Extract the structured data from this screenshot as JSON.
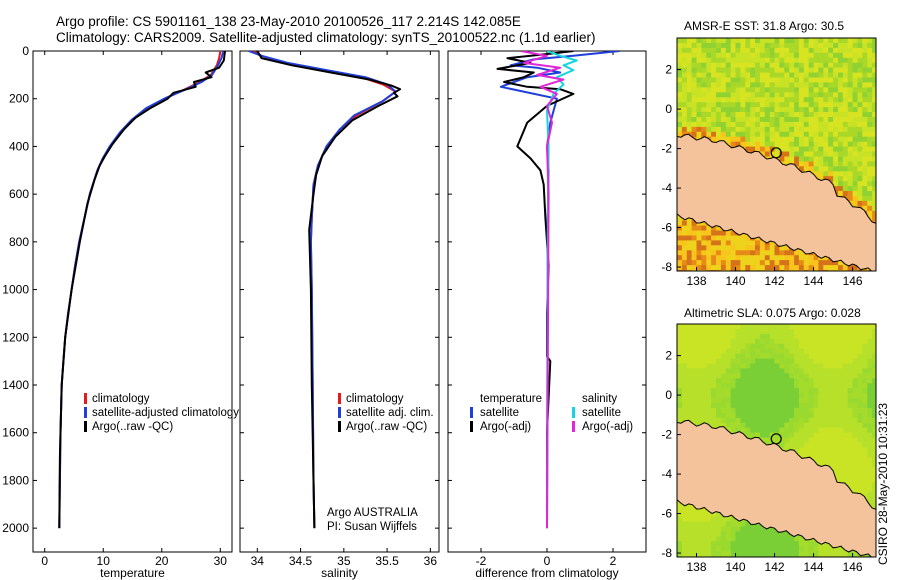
{
  "header": {
    "line1": "Argo profile: CS 5901161_138 23-May-2010 20100526_117 2.214S 142.085E",
    "line2": "Climatology: CARS2009. Satellite-adjusted climatology: synTS_20100522.nc (1.1d earlier)"
  },
  "side_label": "CSIRO 28-May-2010 10:31:23",
  "chart_data": [
    {
      "type": "line",
      "name": "temperature-profile",
      "xlabel": "temperature",
      "xlim": [
        -2,
        32
      ],
      "ylim": [
        0,
        2100
      ],
      "y_reversed": true,
      "xticks": [
        0,
        10,
        20,
        30
      ],
      "yticks": [
        0,
        200,
        400,
        600,
        800,
        1000,
        1200,
        1400,
        1600,
        1800,
        2000
      ],
      "legend": {
        "placement": "lower-right",
        "items": [
          "climatology",
          "satellite-adjusted climatology",
          "Argo(..raw -QC)"
        ]
      },
      "series": [
        {
          "name": "climatology",
          "color": "#e41a1c",
          "x": [
            30.0,
            29.8,
            29.4,
            28.4,
            26.5,
            24.0,
            20.5,
            17.5,
            15.0,
            13.0,
            11.2,
            10.0,
            9.0,
            7.7,
            6.8,
            5.9,
            5.2,
            4.6,
            4.0,
            3.5,
            3.2,
            2.9,
            2.7,
            2.6,
            2.5
          ],
          "y": [
            0,
            30,
            60,
            100,
            130,
            160,
            200,
            240,
            290,
            340,
            400,
            450,
            500,
            600,
            700,
            800,
            900,
            1000,
            1100,
            1200,
            1300,
            1400,
            1600,
            1800,
            2000
          ]
        },
        {
          "name": "satellite-adjusted climatology",
          "color": "#1f3fd9",
          "x": [
            30.5,
            30.2,
            29.6,
            28.6,
            26.8,
            24.2,
            20.4,
            17.3,
            14.8,
            12.9,
            11.1,
            9.9,
            9.0,
            7.7,
            6.8,
            5.9,
            5.2,
            4.6,
            4.0,
            3.5,
            3.2,
            2.9,
            2.7,
            2.6,
            2.5
          ],
          "y": [
            0,
            30,
            60,
            100,
            130,
            160,
            200,
            240,
            290,
            340,
            400,
            450,
            500,
            600,
            700,
            800,
            900,
            1000,
            1100,
            1200,
            1300,
            1400,
            1600,
            1800,
            2000
          ]
        },
        {
          "name": "Argo(..raw -QC)",
          "color": "#000000",
          "x": [
            30.8,
            30.6,
            29.8,
            27.5,
            28.5,
            25.5,
            25.8,
            22.0,
            21.0,
            18.0,
            15.5,
            13.5,
            11.6,
            10.3,
            9.4,
            8.5,
            7.3,
            6.0,
            4.6,
            3.5,
            2.9,
            2.6,
            2.5
          ],
          "y": [
            0,
            40,
            70,
            90,
            110,
            130,
            150,
            175,
            200,
            240,
            280,
            330,
            390,
            440,
            480,
            540,
            640,
            800,
            1000,
            1200,
            1400,
            1700,
            2000
          ]
        }
      ]
    },
    {
      "type": "line",
      "name": "salinity-profile",
      "xlabel": "salinity",
      "xlim": [
        33.8,
        36.1
      ],
      "ylim": [
        0,
        2100
      ],
      "y_reversed": true,
      "xticks": [
        34,
        34.5,
        35,
        35.5,
        36
      ],
      "legend": {
        "placement": "lower-right",
        "items": [
          "climatology",
          "satellite adj. clim.",
          "Argo(..raw -QC)"
        ]
      },
      "annotation": [
        "Argo AUSTRALIA",
        "PI: Susan Wijffels"
      ],
      "series": [
        {
          "name": "climatology",
          "color": "#e41a1c",
          "x": [
            33.95,
            34.05,
            34.3,
            34.75,
            35.2,
            35.45,
            35.6,
            35.45,
            35.15,
            34.95,
            34.8,
            34.7,
            34.65,
            34.63,
            34.62,
            34.63,
            34.64,
            34.65,
            34.66
          ],
          "y": [
            0,
            20,
            50,
            80,
            110,
            140,
            170,
            210,
            270,
            330,
            400,
            480,
            560,
            700,
            800,
            1000,
            1400,
            1800,
            2000
          ]
        },
        {
          "name": "satellite adj. clim.",
          "color": "#1f3fd9",
          "x": [
            33.9,
            34.05,
            34.35,
            34.8,
            35.25,
            35.5,
            35.6,
            35.45,
            35.12,
            34.95,
            34.8,
            34.7,
            34.65,
            34.63,
            34.62,
            34.63,
            34.64,
            34.65,
            34.66
          ],
          "y": [
            0,
            20,
            50,
            80,
            110,
            140,
            170,
            210,
            270,
            330,
            400,
            480,
            560,
            700,
            800,
            1000,
            1400,
            1800,
            2000
          ]
        },
        {
          "name": "Argo(..raw -QC)",
          "color": "#000000",
          "x": [
            34.0,
            34.05,
            34.4,
            34.85,
            35.3,
            35.55,
            35.65,
            35.58,
            35.62,
            35.4,
            35.1,
            34.9,
            34.75,
            34.68,
            34.65,
            34.6,
            34.62,
            34.63,
            34.65,
            34.66
          ],
          "y": [
            0,
            30,
            60,
            90,
            120,
            145,
            160,
            175,
            190,
            230,
            290,
            360,
            440,
            520,
            600,
            750,
            1000,
            1400,
            1800,
            2000
          ]
        }
      ]
    },
    {
      "type": "line",
      "name": "difference-profile",
      "xlabel": "difference from climatology",
      "xlim": [
        -3,
        3
      ],
      "ylim": [
        0,
        2100
      ],
      "y_reversed": true,
      "xticks": [
        -2,
        0,
        2
      ],
      "legend": {
        "placement": "lower-center",
        "columns": [
          {
            "heading": "temperature",
            "items": [
              "satellite",
              "Argo(-adj)"
            ]
          },
          {
            "heading": "salinity",
            "items": [
              "satellite",
              "Argo(-adj)"
            ]
          }
        ]
      },
      "series": [
        {
          "name": "temperature satellite",
          "color": "#1f3fd9",
          "x": [
            2.2,
            1.5,
            0.8,
            -0.4,
            -1.1,
            -0.3,
            0.4,
            -0.6,
            -1.4,
            0.3,
            0.1,
            0.0,
            0.05,
            0.02,
            0.02,
            0.01,
            0.0
          ],
          "y": [
            0,
            10,
            20,
            35,
            60,
            70,
            90,
            110,
            150,
            200,
            300,
            400,
            500,
            700,
            1000,
            1500,
            2000
          ]
        },
        {
          "name": "temperature Argo(-adj)",
          "color": "#000000",
          "x": [
            0.8,
            0.2,
            -1.2,
            -0.5,
            -1.5,
            -0.4,
            -0.7,
            -1.3,
            -0.6,
            0.4,
            0.8,
            0.0,
            -0.6,
            -0.9,
            -0.5,
            -0.2,
            -0.1,
            -0.05,
            0.05,
            0.0,
            0.0,
            0.1,
            0.0,
            0.0
          ],
          "y": [
            0,
            10,
            30,
            50,
            75,
            90,
            110,
            130,
            150,
            160,
            180,
            230,
            300,
            400,
            450,
            500,
            560,
            700,
            900,
            1100,
            1280,
            1300,
            1600,
            2000
          ]
        },
        {
          "name": "salinity satellite",
          "color": "#17d4e0",
          "x": [
            0.0,
            0.4,
            0.9,
            0.5,
            0.8,
            0.3,
            0.5,
            0.2,
            0.0,
            0.05,
            0.02,
            0.0
          ],
          "y": [
            0,
            20,
            40,
            60,
            80,
            110,
            140,
            180,
            250,
            400,
            800,
            2000
          ]
        },
        {
          "name": "salinity Argo(-adj)",
          "color": "#e026d6",
          "x": [
            -0.8,
            0.0,
            -0.7,
            0.4,
            -0.3,
            0.5,
            -0.2,
            0.3,
            0.0,
            0.15,
            0.0,
            0.05,
            0.0
          ],
          "y": [
            0,
            20,
            50,
            70,
            100,
            120,
            150,
            180,
            230,
            300,
            400,
            600,
            2000
          ]
        }
      ]
    },
    {
      "type": "heatmap",
      "name": "sst-map",
      "title": "AMSR-E SST: 31.8 Argo: 30.5",
      "xlim": [
        137,
        147.2
      ],
      "ylim": [
        -8.2,
        3.6
      ],
      "xticks": [
        138,
        140,
        142,
        144,
        146
      ],
      "yticks": [
        2,
        0,
        -2,
        -4,
        -6,
        -8
      ],
      "argo_point": {
        "lon": 142.085,
        "lat": -2.214
      }
    },
    {
      "type": "heatmap",
      "name": "sla-map",
      "title": "Altimetric SLA: 0.075 Argo: 0.028",
      "xlim": [
        137,
        147.2
      ],
      "ylim": [
        -8.2,
        3.6
      ],
      "xticks": [
        138,
        140,
        142,
        144,
        146
      ],
      "yticks": [
        2,
        0,
        -2,
        -4,
        -6,
        -8
      ],
      "argo_point": {
        "lon": 142.085,
        "lat": -2.214
      }
    }
  ]
}
